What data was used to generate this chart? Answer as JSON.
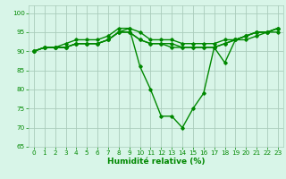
{
  "series": [
    {
      "x": [
        0,
        1,
        2,
        3,
        4,
        5,
        6,
        7,
        8,
        9,
        10,
        11,
        12,
        13,
        14,
        15,
        16,
        17,
        18,
        19,
        20,
        21,
        22,
        23
      ],
      "y": [
        90,
        91,
        91,
        91,
        92,
        92,
        92,
        93,
        95,
        96,
        86,
        80,
        73,
        73,
        70,
        75,
        79,
        91,
        87,
        93,
        94,
        95,
        95,
        95
      ]
    },
    {
      "x": [
        0,
        1,
        2,
        3,
        4,
        5,
        6,
        7,
        8,
        9,
        10,
        11,
        12,
        13,
        14,
        15,
        16,
        17,
        18,
        19,
        20,
        21,
        22,
        23
      ],
      "y": [
        90,
        91,
        91,
        92,
        93,
        93,
        93,
        94,
        96,
        96,
        95,
        93,
        93,
        93,
        92,
        92,
        92,
        92,
        93,
        93,
        94,
        95,
        95,
        96
      ]
    },
    {
      "x": [
        0,
        1,
        2,
        3,
        4,
        5,
        6,
        7,
        8,
        9,
        10,
        11,
        12,
        13,
        14,
        15,
        16,
        17,
        18,
        19,
        20,
        21,
        22,
        23
      ],
      "y": [
        90,
        91,
        91,
        91,
        92,
        92,
        92,
        93,
        95,
        95,
        93,
        92,
        92,
        92,
        91,
        91,
        91,
        91,
        92,
        93,
        94,
        95,
        95,
        96
      ]
    },
    {
      "x": [
        0,
        1,
        2,
        3,
        4,
        5,
        6,
        7,
        8,
        9,
        10,
        11,
        12,
        13,
        14,
        15,
        16,
        17,
        18,
        19,
        20,
        21,
        22,
        23
      ],
      "y": [
        90,
        91,
        91,
        91,
        92,
        92,
        92,
        93,
        95,
        95,
        93,
        92,
        92,
        91,
        91,
        91,
        91,
        91,
        92,
        93,
        93,
        94,
        95,
        96
      ]
    }
  ],
  "line_color": "#008800",
  "marker": "D",
  "markersize": 1.8,
  "linewidth": 1.0,
  "bg_color": "#d8f5e8",
  "grid_color": "#aaccbb",
  "xlabel": "Humidité relative (%)",
  "xlabel_color": "#008800",
  "tick_color": "#008800",
  "xlim": [
    -0.5,
    23.5
  ],
  "ylim": [
    65,
    102
  ],
  "yticks": [
    65,
    70,
    75,
    80,
    85,
    90,
    95,
    100
  ],
  "xticks": [
    0,
    1,
    2,
    3,
    4,
    5,
    6,
    7,
    8,
    9,
    10,
    11,
    12,
    13,
    14,
    15,
    16,
    17,
    18,
    19,
    20,
    21,
    22,
    23
  ],
  "tick_fontsize": 5.2,
  "xlabel_fontsize": 6.5
}
